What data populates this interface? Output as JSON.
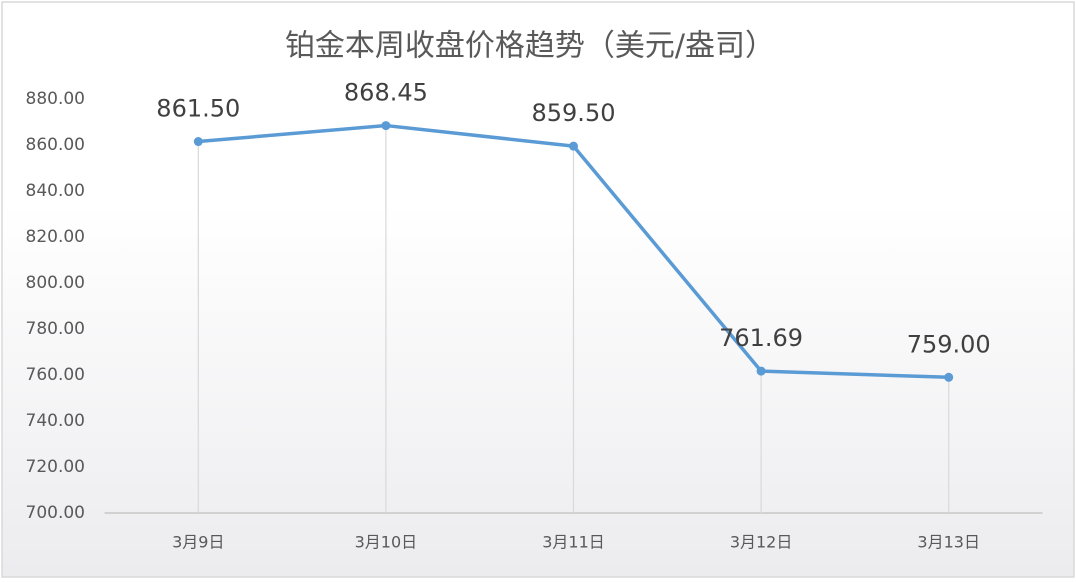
{
  "chart_data": {
    "type": "line",
    "title": "铂金本周收盘价格趋势（美元/盎司）",
    "categories": [
      "3月9日",
      "3月10日",
      "3月11日",
      "3月12日",
      "3月13日"
    ],
    "series": [
      {
        "name": "铂金",
        "color": "#5b9bd5",
        "values": [
          861.5,
          868.45,
          859.5,
          761.69,
          759
        ],
        "value_labels": [
          "861.50",
          "868.45",
          "859.50",
          "761.69",
          "759.00"
        ]
      }
    ],
    "ylim": [
      700,
      880
    ],
    "yticks": [
      {
        "value": 700,
        "label": "700.00"
      },
      {
        "value": 720,
        "label": "720.00"
      },
      {
        "value": 740,
        "label": "740.00"
      },
      {
        "value": 760,
        "label": "760.00"
      },
      {
        "value": 780,
        "label": "780.00"
      },
      {
        "value": 800,
        "label": "800.00"
      },
      {
        "value": 820,
        "label": "820.00"
      },
      {
        "value": 840,
        "label": "840.00"
      },
      {
        "value": 860,
        "label": "860.00"
      },
      {
        "value": 880,
        "label": "880.00"
      }
    ],
    "drop_lines": true
  }
}
